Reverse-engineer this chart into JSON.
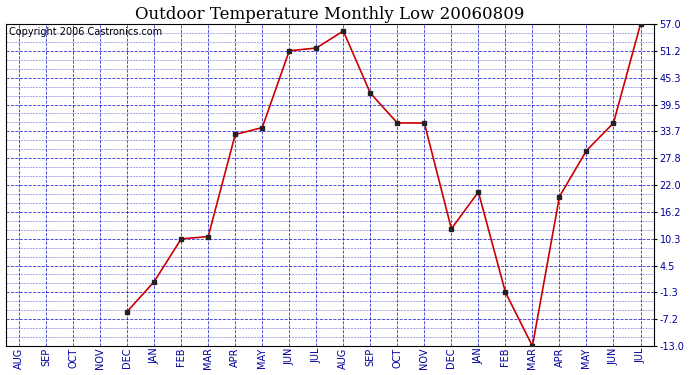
{
  "title": "Outdoor Temperature Monthly Low 20060809",
  "copyright": "Copyright 2006 Castronics.com",
  "x_labels": [
    "AUG",
    "SEP",
    "OCT",
    "NOV",
    "DEC",
    "JAN",
    "FEB",
    "MAR",
    "APR",
    "MAY",
    "JUN",
    "JUL",
    "AUG",
    "SEP",
    "OCT",
    "NOV",
    "DEC",
    "JAN",
    "FEB",
    "MAR",
    "APR",
    "MAY",
    "JUN",
    "JUL"
  ],
  "data_x": [
    4,
    5,
    6,
    7,
    8,
    9,
    10,
    11,
    12,
    13,
    14,
    15,
    16,
    17,
    18,
    19,
    20,
    21,
    22,
    23
  ],
  "data_y": [
    -5.5,
    1.0,
    10.3,
    10.8,
    33.0,
    34.5,
    51.2,
    51.8,
    55.5,
    42.0,
    35.5,
    35.5,
    12.5,
    20.5,
    -1.3,
    -13.0,
    19.5,
    29.5,
    35.5,
    57.0
  ],
  "ylim": [
    -13.0,
    57.0
  ],
  "yticks": [
    -13.0,
    -7.2,
    -1.3,
    4.5,
    10.3,
    16.2,
    22.0,
    27.8,
    33.7,
    39.5,
    45.3,
    51.2,
    57.0
  ],
  "line_color": "#cc0000",
  "marker_color": "#222222",
  "outer_bg": "#ffffff",
  "plot_bg": "#ffffff",
  "grid_color": "#0000cc",
  "title_fontsize": 12,
  "copyright_fontsize": 7,
  "tick_fontsize": 7,
  "tick_color": "#000099"
}
